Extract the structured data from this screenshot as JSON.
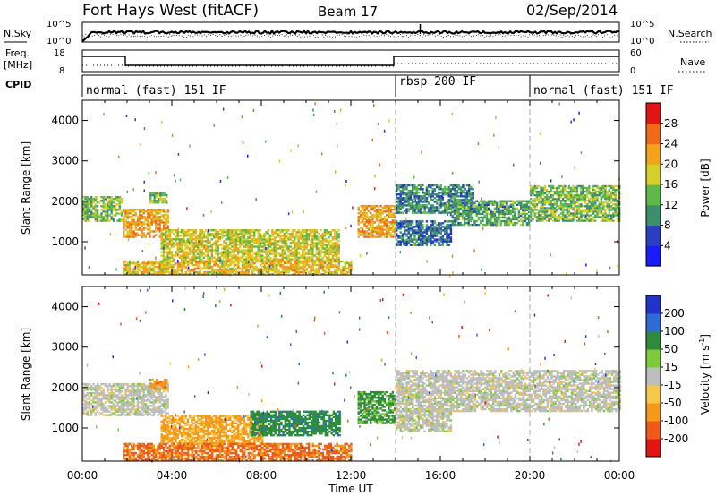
{
  "header": {
    "station": "Fort Hays West (fitACF)",
    "beam": "Beam 17",
    "date": "02/Sep/2014"
  },
  "noise_panel": {
    "left_label": "N.Sky",
    "right_label": "N.Search",
    "left_ticks": [
      "10^5",
      "10^0"
    ],
    "right_ticks": [
      "10^5",
      "10^0"
    ]
  },
  "freq_panel": {
    "left_label_1": "Freq.",
    "left_label_2": "[MHz]",
    "left_ticks": [
      "18",
      "8"
    ],
    "right_label": "Nave",
    "right_ticks": [
      "60",
      "0"
    ]
  },
  "cpid": {
    "label": "CPID",
    "segments": [
      {
        "name": "normal (fast) 151 IF",
        "start": "00:00",
        "end": "14:00"
      },
      {
        "name": "rbsp 200 IF",
        "start": "14:00",
        "end": "20:00"
      },
      {
        "name": "normal (fast) 151 IF",
        "start": "20:00",
        "end": "24:00"
      }
    ]
  },
  "x_axis": {
    "label": "Time UT",
    "ticks": [
      "00:00",
      "04:00",
      "08:00",
      "12:00",
      "16:00",
      "20:00",
      "00:00"
    ]
  },
  "power_panel": {
    "ylabel": "Slant Range [km]",
    "yticks": [
      "1000",
      "2000",
      "3000",
      "4000"
    ],
    "colorbar_title": "Power [dB]",
    "colorbar_ticks": [
      "4",
      "8",
      "12",
      "16",
      "20",
      "24",
      "28"
    ],
    "colorbar_colors": [
      "#1a1aff",
      "#2a3fbf",
      "#3d8f6a",
      "#5fb84a",
      "#d6cf2a",
      "#f1a31a",
      "#f16a1a",
      "#e31414"
    ]
  },
  "velocity_panel": {
    "ylabel": "Slant Range [km]",
    "yticks": [
      "1000",
      "2000",
      "3000",
      "4000"
    ],
    "colorbar_title": "Velocity [m s^-1]",
    "colorbar_ticks": [
      "200",
      "100",
      "50",
      "15",
      "-15",
      "-50",
      "-100",
      "-200"
    ],
    "colorbar_colors": [
      "#2233cc",
      "#2e6bd6",
      "#2c8c3c",
      "#7ccc3a",
      "#bdbdbd",
      "#f6c84a",
      "#f39a1a",
      "#ef5a1a",
      "#e31414"
    ]
  },
  "chart_data": {
    "type": "heatmap",
    "x_range_hours": [
      0,
      24
    ],
    "y_range_km": [
      180,
      4500
    ],
    "power_regions": [
      {
        "t0": 0.0,
        "t1": 1.8,
        "r0": 1500,
        "r1": 2100,
        "level": 14
      },
      {
        "t0": 1.8,
        "t1": 3.8,
        "r0": 1100,
        "r1": 1800,
        "level": 22
      },
      {
        "t0": 3.0,
        "t1": 3.8,
        "r0": 1950,
        "r1": 2200,
        "level": 14
      },
      {
        "t0": 3.5,
        "t1": 11.5,
        "r0": 500,
        "r1": 1300,
        "level": 18
      },
      {
        "t0": 1.8,
        "t1": 12.0,
        "r0": 180,
        "r1": 500,
        "level": 20
      },
      {
        "t0": 12.3,
        "t1": 14.0,
        "r0": 1100,
        "r1": 1900,
        "level": 22
      },
      {
        "t0": 14.0,
        "t1": 17.5,
        "r0": 1700,
        "r1": 2400,
        "level": 10
      },
      {
        "t0": 14.0,
        "t1": 16.5,
        "r0": 900,
        "r1": 1500,
        "level": 8
      },
      {
        "t0": 16.5,
        "t1": 20.0,
        "r0": 1400,
        "r1": 2000,
        "level": 12
      },
      {
        "t0": 20.0,
        "t1": 24.0,
        "r0": 1500,
        "r1": 2400,
        "level": 14
      }
    ],
    "velocity_regions": [
      {
        "t0": 0.0,
        "t1": 3.8,
        "r0": 1300,
        "r1": 2100,
        "v": 0
      },
      {
        "t0": 3.0,
        "t1": 3.8,
        "r0": 1950,
        "r1": 2200,
        "v": -60
      },
      {
        "t0": 3.5,
        "t1": 8.0,
        "r0": 600,
        "r1": 1300,
        "v": -40
      },
      {
        "t0": 7.5,
        "t1": 11.5,
        "r0": 800,
        "r1": 1400,
        "v": 60
      },
      {
        "t0": 1.8,
        "t1": 12.0,
        "r0": 180,
        "r1": 600,
        "v": -80
      },
      {
        "t0": 12.3,
        "t1": 14.0,
        "r0": 1100,
        "r1": 1900,
        "v": 40
      },
      {
        "t0": 14.0,
        "t1": 24.0,
        "r0": 1400,
        "r1": 2400,
        "v": 0
      },
      {
        "t0": 14.0,
        "t1": 16.5,
        "r0": 900,
        "r1": 1400,
        "v": 0
      }
    ]
  }
}
